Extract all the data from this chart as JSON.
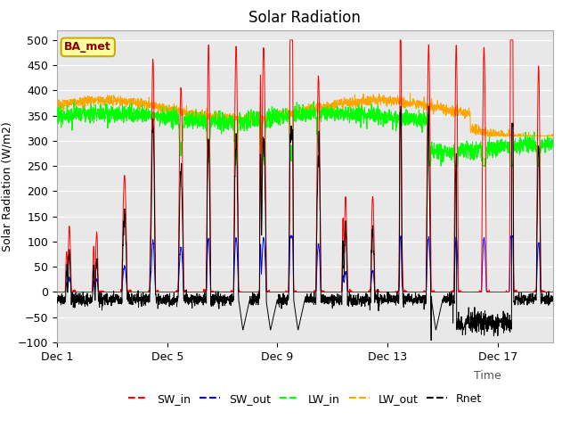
{
  "title": "Solar Radiation",
  "ylabel": "Solar Radiation (W/m2)",
  "xlabel": "Time",
  "ylim": [
    -100,
    520
  ],
  "yticks": [
    -100,
    -50,
    0,
    50,
    100,
    150,
    200,
    250,
    300,
    350,
    400,
    450,
    500
  ],
  "xtick_labels": [
    "Dec 1",
    "Dec 5",
    "Dec 9",
    "Dec 13",
    "Dec 17"
  ],
  "xtick_positions": [
    0,
    4,
    8,
    12,
    16
  ],
  "legend_entries": [
    "SW_in",
    "SW_out",
    "LW_in",
    "LW_out",
    "Rnet"
  ],
  "legend_colors": [
    "red",
    "blue",
    "#00ff00",
    "orange",
    "black"
  ],
  "annotation_text": "BA_met",
  "annotation_color": "#8B0000",
  "annotation_bg": "#FFFFA0",
  "plot_bg": "#E8E8E8",
  "title_fontsize": 12,
  "label_fontsize": 9,
  "tick_fontsize": 9,
  "n_days": 18,
  "n_points_per_day": 144,
  "lw_line": 0.7
}
